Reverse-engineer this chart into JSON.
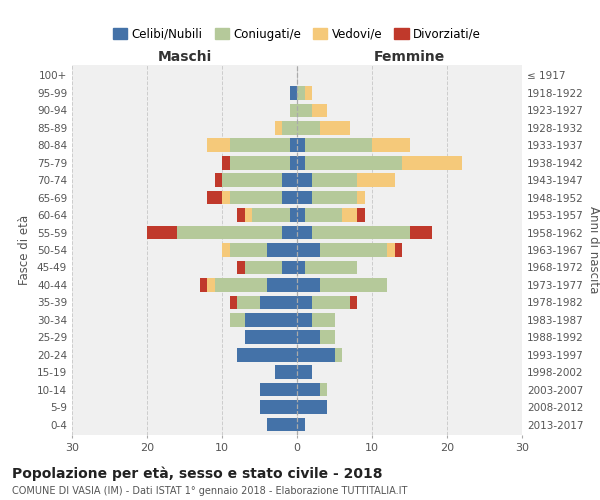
{
  "age_groups": [
    "0-4",
    "5-9",
    "10-14",
    "15-19",
    "20-24",
    "25-29",
    "30-34",
    "35-39",
    "40-44",
    "45-49",
    "50-54",
    "55-59",
    "60-64",
    "65-69",
    "70-74",
    "75-79",
    "80-84",
    "85-89",
    "90-94",
    "95-99",
    "100+"
  ],
  "birth_years": [
    "2013-2017",
    "2008-2012",
    "2003-2007",
    "1998-2002",
    "1993-1997",
    "1988-1992",
    "1983-1987",
    "1978-1982",
    "1973-1977",
    "1968-1972",
    "1963-1967",
    "1958-1962",
    "1953-1957",
    "1948-1952",
    "1943-1947",
    "1938-1942",
    "1933-1937",
    "1928-1932",
    "1923-1927",
    "1918-1922",
    "≤ 1917"
  ],
  "males": {
    "celibi": [
      4,
      5,
      5,
      3,
      8,
      7,
      7,
      5,
      4,
      2,
      4,
      2,
      1,
      2,
      2,
      1,
      1,
      0,
      0,
      1,
      0
    ],
    "coniugati": [
      0,
      0,
      0,
      0,
      0,
      0,
      2,
      3,
      7,
      5,
      5,
      14,
      5,
      7,
      8,
      8,
      8,
      2,
      1,
      0,
      0
    ],
    "vedovi": [
      0,
      0,
      0,
      0,
      0,
      0,
      0,
      0,
      1,
      0,
      1,
      0,
      1,
      1,
      0,
      0,
      3,
      1,
      0,
      0,
      0
    ],
    "divorziati": [
      0,
      0,
      0,
      0,
      0,
      0,
      0,
      1,
      1,
      1,
      0,
      4,
      1,
      2,
      1,
      1,
      0,
      0,
      0,
      0,
      0
    ]
  },
  "females": {
    "nubili": [
      1,
      4,
      3,
      2,
      5,
      3,
      2,
      2,
      3,
      1,
      3,
      2,
      1,
      2,
      2,
      1,
      1,
      0,
      0,
      0,
      0
    ],
    "coniugate": [
      0,
      0,
      1,
      0,
      1,
      2,
      3,
      5,
      9,
      7,
      9,
      13,
      5,
      6,
      6,
      13,
      9,
      3,
      2,
      1,
      0
    ],
    "vedove": [
      0,
      0,
      0,
      0,
      0,
      0,
      0,
      0,
      0,
      0,
      1,
      0,
      2,
      1,
      5,
      8,
      5,
      4,
      2,
      1,
      0
    ],
    "divorziate": [
      0,
      0,
      0,
      0,
      0,
      0,
      0,
      1,
      0,
      0,
      1,
      3,
      1,
      0,
      0,
      0,
      0,
      0,
      0,
      0,
      0
    ]
  },
  "colors": {
    "celibi": "#4472a8",
    "coniugati": "#b5c99a",
    "vedovi": "#f5c97a",
    "divorziati": "#c0392b"
  },
  "xlim": 30,
  "title": "Popolazione per età, sesso e stato civile - 2018",
  "subtitle": "COMUNE DI VASIA (IM) - Dati ISTAT 1° gennaio 2018 - Elaborazione TUTTITALIA.IT",
  "ylabel_left": "Fasce di età",
  "ylabel_right": "Anni di nascita",
  "xlabel_left": "Maschi",
  "xlabel_right": "Femmine",
  "legend_labels": [
    "Celibi/Nubili",
    "Coniugati/e",
    "Vedovi/e",
    "Divorziati/e"
  ],
  "bg_color": "#f0f0f0"
}
